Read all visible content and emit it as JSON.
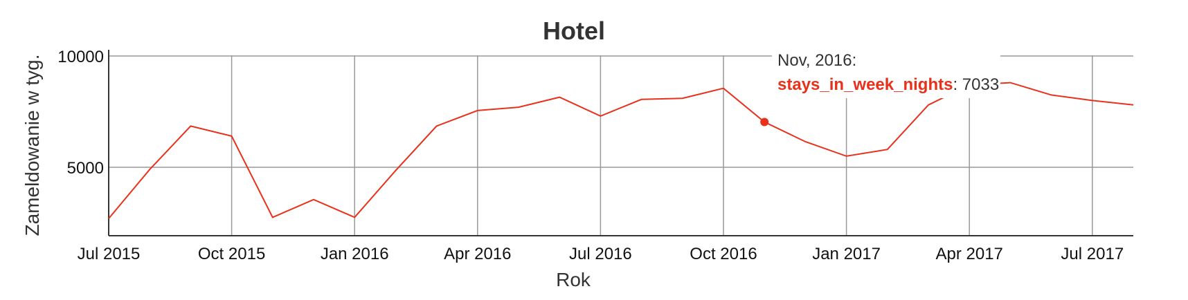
{
  "chart_data": {
    "type": "line",
    "title": "Hotel",
    "xlabel": "Rok",
    "ylabel": "Zameldowanie w tyg.",
    "x_tick_labels": [
      "Jul 2015",
      "Oct 2015",
      "Jan 2016",
      "Apr 2016",
      "Jul 2016",
      "Oct 2016",
      "Jan 2017",
      "Apr 2017",
      "Jul 2017"
    ],
    "y_tick_labels": [
      "5000",
      "10000"
    ],
    "ylim": [
      2000,
      10000
    ],
    "xlim": [
      "2015-07-01",
      "2017-08-01"
    ],
    "grid": true,
    "series": [
      {
        "name": "stays_in_week_nights",
        "color": "#e8311a",
        "x": [
          "2015-07",
          "2015-08",
          "2015-09",
          "2015-10",
          "2015-11",
          "2015-12",
          "2016-01",
          "2016-02",
          "2016-03",
          "2016-04",
          "2016-05",
          "2016-06",
          "2016-07",
          "2016-08",
          "2016-09",
          "2016-10",
          "2016-11",
          "2016-12",
          "2017-01",
          "2017-02",
          "2017-03",
          "2017-04",
          "2017-05",
          "2017-06",
          "2017-07",
          "2017-08"
        ],
        "values": [
          2700,
          4900,
          6850,
          6400,
          2750,
          3550,
          2750,
          4850,
          6850,
          7550,
          7700,
          8150,
          7300,
          8050,
          8100,
          8550,
          7033,
          6150,
          5500,
          5800,
          7800,
          8700,
          8800,
          8250,
          8000,
          7800
        ]
      }
    ],
    "tooltip": {
      "header": "Nov, 2016:",
      "series": "stays_in_week_nights",
      "value": "7033",
      "point_x": "2016-11"
    }
  }
}
